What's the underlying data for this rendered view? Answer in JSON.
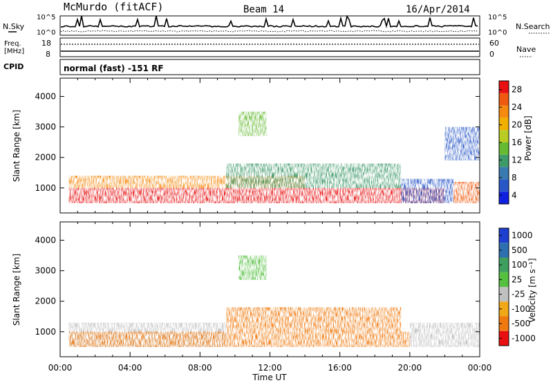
{
  "header": {
    "station": "McMurdo (fitACF)",
    "beam": "Beam 14",
    "date": "16/Apr/2014"
  },
  "top_panels": {
    "nsky_label": "N.Sky",
    "nsearch_label": "N.Search",
    "freq_label_1": "Freq.",
    "freq_label_2": "[MHz]",
    "nave_label": "Nave",
    "cpid_label": "CPID",
    "cpid_text": "normal (fast) -151 RF",
    "noise_ticks_left": [
      "10^5",
      "10^0"
    ],
    "noise_ticks_right": [
      "10^5",
      "10^0"
    ],
    "freq_ticks": [
      "18",
      "8"
    ],
    "nave_ticks": [
      "60",
      "0"
    ]
  },
  "chart_data": [
    {
      "type": "heatmap",
      "panel": "power",
      "xlabel": "Time UT",
      "ylabel": "Slant Range [km]",
      "x_ticks": [
        "00:00",
        "04:00",
        "08:00",
        "12:00",
        "16:00",
        "20:00",
        "00:00"
      ],
      "xlim_hours": [
        0,
        24
      ],
      "y_ticks": [
        1000,
        2000,
        3000,
        4000
      ],
      "ylim_km": [
        180,
        4600
      ],
      "colorbar_label": "Power [dB]",
      "colorbar_ticks": [
        4,
        8,
        12,
        16,
        20,
        24,
        28
      ],
      "colorbar_colors": [
        "#1020e0",
        "#2858c8",
        "#3a7ab0",
        "#3f9a6a",
        "#66bb33",
        "#b8cc22",
        "#f0b000",
        "#f68a10",
        "#f05a10",
        "#e81010"
      ],
      "backscatter_regions": [
        {
          "start_h": 0.5,
          "end_h": 22.0,
          "range_km": [
            500,
            1000
          ],
          "power_db": 28
        },
        {
          "start_h": 0.5,
          "end_h": 14.0,
          "range_km": [
            1000,
            1400
          ],
          "power_db": 22
        },
        {
          "start_h": 9.5,
          "end_h": 19.5,
          "range_km": [
            1000,
            1800
          ],
          "power_db": 12
        },
        {
          "start_h": 19.5,
          "end_h": 22.5,
          "range_km": [
            500,
            1300
          ],
          "power_db": 6
        },
        {
          "start_h": 22.5,
          "end_h": 24.0,
          "range_km": [
            500,
            1200
          ],
          "power_db": 26
        },
        {
          "start_h": 10.2,
          "end_h": 11.8,
          "range_km": [
            2700,
            3500
          ],
          "power_db": 14
        },
        {
          "start_h": 22.0,
          "end_h": 24.0,
          "range_km": [
            1900,
            3000
          ],
          "power_db": 6
        }
      ]
    },
    {
      "type": "heatmap",
      "panel": "velocity",
      "xlabel": "Time UT",
      "ylabel": "Slant Range [km]",
      "x_ticks": [
        "00:00",
        "04:00",
        "08:00",
        "12:00",
        "16:00",
        "20:00",
        "00:00"
      ],
      "xlim_hours": [
        0,
        24
      ],
      "y_ticks": [
        1000,
        2000,
        3000,
        4000
      ],
      "ylim_km": [
        180,
        4600
      ],
      "colorbar_label": "Velocity [m s⁻¹]",
      "colorbar_ticks": [
        1000,
        500,
        100,
        25,
        -25,
        -100,
        -500,
        -1000
      ],
      "colorbar_colors": [
        "#1e3fcf",
        "#2e6fb0",
        "#3f9f5f",
        "#55c040",
        "#c0c0c0",
        "#f0a818",
        "#f07a10",
        "#e81010"
      ],
      "backscatter_regions": [
        {
          "start_h": 0.5,
          "end_h": 9.5,
          "range_km": [
            500,
            1300
          ],
          "velocity_ms": 0
        },
        {
          "start_h": 0.5,
          "end_h": 20.0,
          "range_km": [
            500,
            1000
          ],
          "velocity_ms": -150
        },
        {
          "start_h": 9.5,
          "end_h": 19.5,
          "range_km": [
            1000,
            1800
          ],
          "velocity_ms": -150
        },
        {
          "start_h": 20.0,
          "end_h": 24.0,
          "range_km": [
            500,
            1300
          ],
          "velocity_ms": 0
        },
        {
          "start_h": 10.2,
          "end_h": 11.8,
          "range_km": [
            2700,
            3500
          ],
          "velocity_ms": 50
        }
      ]
    }
  ]
}
